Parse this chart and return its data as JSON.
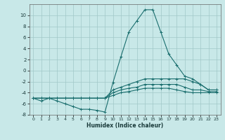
{
  "xlabel": "Humidex (Indice chaleur)",
  "ylabel": "",
  "bg_color": "#c8e8e8",
  "line_color": "#1a6e6e",
  "grid_color": "#a0c8c8",
  "xlim": [
    -0.5,
    23.5
  ],
  "ylim": [
    -8,
    12
  ],
  "yticks": [
    -8,
    -6,
    -4,
    -2,
    0,
    2,
    4,
    6,
    8,
    10
  ],
  "xticks": [
    0,
    1,
    2,
    3,
    4,
    5,
    6,
    7,
    8,
    9,
    10,
    11,
    12,
    13,
    14,
    15,
    16,
    17,
    18,
    19,
    20,
    21,
    22,
    23
  ],
  "lines": [
    {
      "x": [
        0,
        1,
        2,
        3,
        4,
        5,
        6,
        7,
        8,
        9,
        10,
        11,
        12,
        13,
        14,
        15,
        16,
        17,
        18,
        19,
        20,
        21,
        22,
        23
      ],
      "y": [
        -5,
        -5.5,
        -5,
        -5.5,
        -6,
        -6.5,
        -7,
        -7,
        -7.2,
        -7.5,
        -2.2,
        2.5,
        7,
        9,
        11,
        11,
        7,
        3,
        1,
        -1,
        -1.5,
        -2.5,
        -3.5,
        -3.5
      ]
    },
    {
      "x": [
        0,
        1,
        2,
        3,
        4,
        5,
        6,
        7,
        8,
        9,
        10,
        11,
        12,
        13,
        14,
        15,
        16,
        17,
        18,
        19,
        20,
        21,
        22,
        23
      ],
      "y": [
        -5,
        -5,
        -5,
        -5,
        -5,
        -5,
        -5,
        -5,
        -5,
        -5,
        -3.5,
        -3,
        -2.5,
        -2,
        -1.5,
        -1.5,
        -1.5,
        -1.5,
        -1.5,
        -1.5,
        -2,
        -2.5,
        -3.5,
        -3.5
      ]
    },
    {
      "x": [
        0,
        1,
        2,
        3,
        4,
        5,
        6,
        7,
        8,
        9,
        10,
        11,
        12,
        13,
        14,
        15,
        16,
        17,
        18,
        19,
        20,
        21,
        22,
        23
      ],
      "y": [
        -5,
        -5,
        -5,
        -5,
        -5,
        -5,
        -5,
        -5,
        -5,
        -5,
        -4,
        -3.5,
        -3.2,
        -3,
        -2.5,
        -2.5,
        -2.5,
        -2.5,
        -2.5,
        -3,
        -3.5,
        -3.5,
        -3.8,
        -3.8
      ]
    },
    {
      "x": [
        0,
        1,
        2,
        3,
        4,
        5,
        6,
        7,
        8,
        9,
        10,
        11,
        12,
        13,
        14,
        15,
        16,
        17,
        18,
        19,
        20,
        21,
        22,
        23
      ],
      "y": [
        -5,
        -5,
        -5,
        -5,
        -5,
        -5,
        -5,
        -5,
        -5,
        -5,
        -4.5,
        -4,
        -3.8,
        -3.5,
        -3.2,
        -3.2,
        -3.2,
        -3.2,
        -3.5,
        -3.8,
        -4,
        -4,
        -4,
        -4
      ]
    }
  ]
}
